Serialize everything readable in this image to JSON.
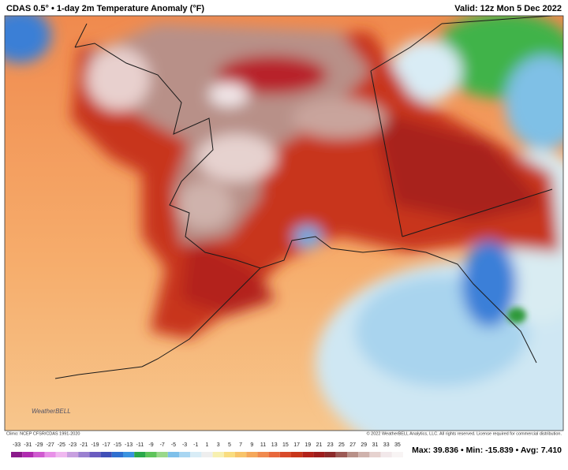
{
  "header": {
    "title": "CDAS 0.5° • 1-day 2m Temperature Anomaly (°F)",
    "valid": "Valid: 12z Mon 5 Dec 2022"
  },
  "logo": "WeatherBELL",
  "footer": {
    "climo": "Climo: NCEP CFSR/CDAS 1991-2020",
    "copyright": "© 2022 WeatherBELL Analytics, LLC. All rights reserved. License required for commercial distribution.",
    "stats": "Max: 39.836 • Min: -15.839 • Avg: 7.410"
  },
  "colorbar": {
    "ticks": [
      -33,
      -31,
      -29,
      -27,
      -25,
      -23,
      -21,
      -19,
      -17,
      -15,
      -13,
      -11,
      -9,
      -7,
      -5,
      -3,
      -1,
      1,
      3,
      5,
      7,
      9,
      11,
      13,
      15,
      17,
      19,
      21,
      23,
      25,
      27,
      29,
      31,
      33,
      35
    ]
  }
}
